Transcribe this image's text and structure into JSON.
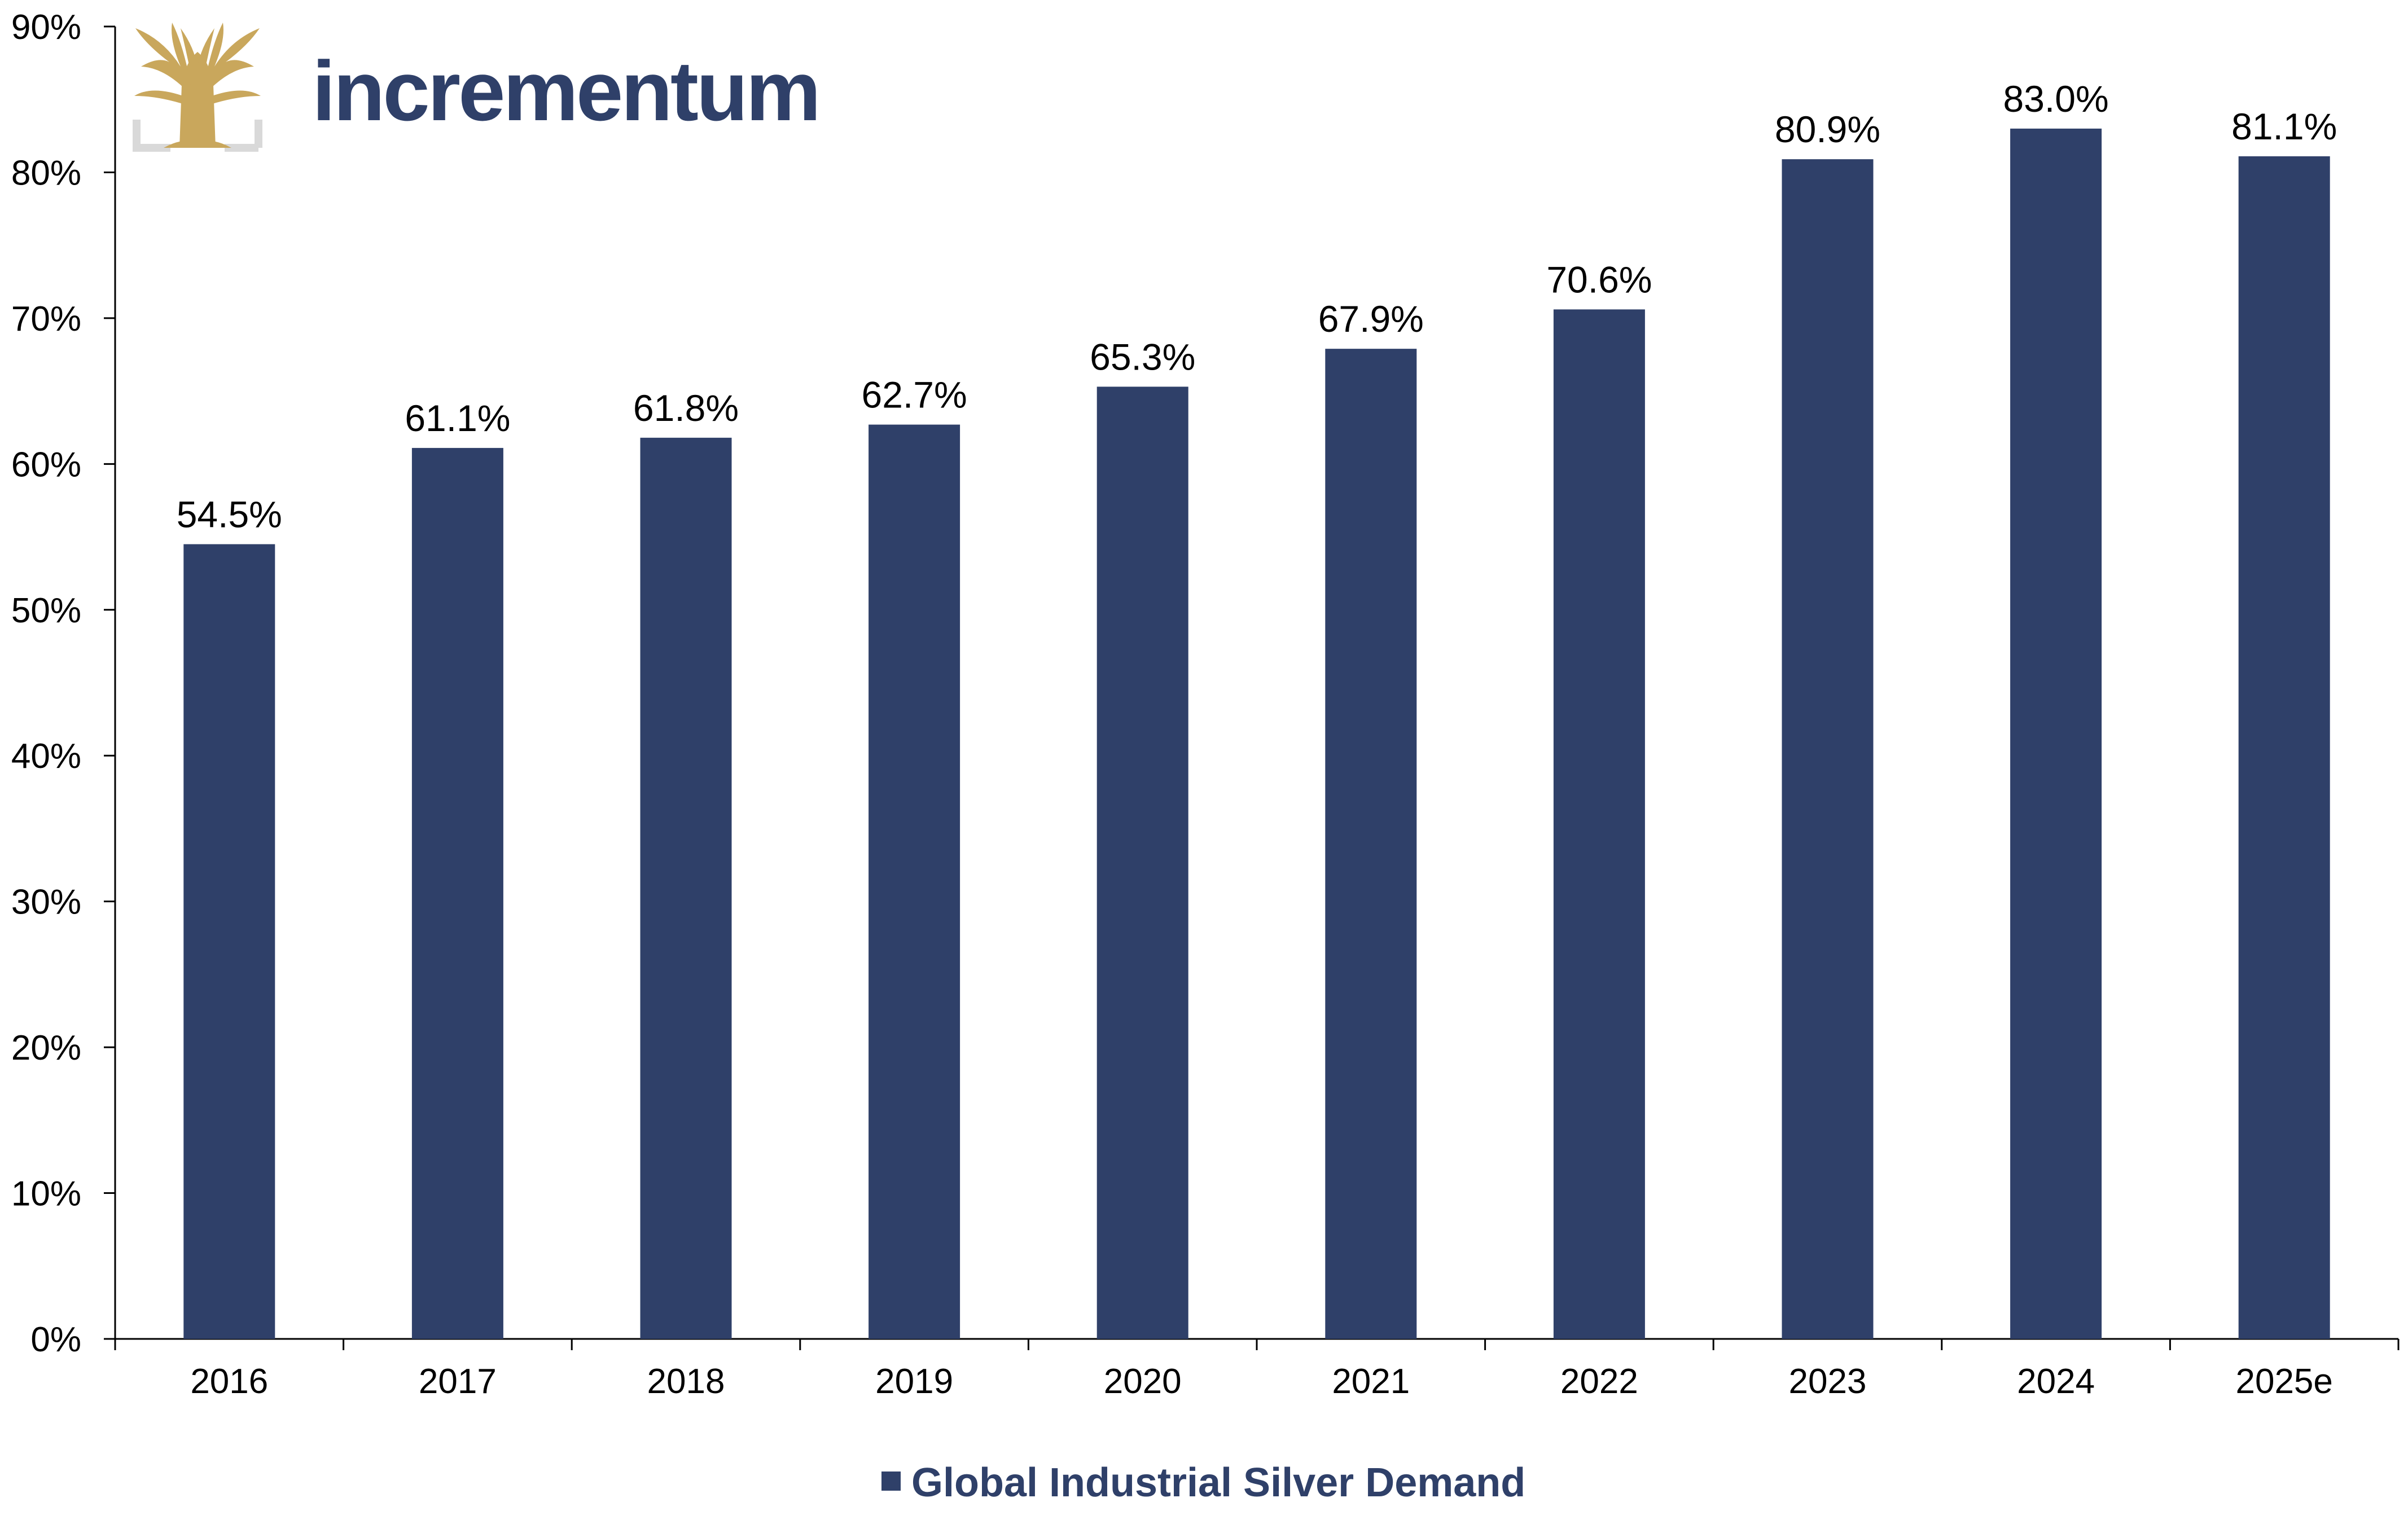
{
  "brand": {
    "name": "incrementum",
    "text_color": "#2f4069",
    "logo_color": "#c9a75c",
    "frame_color": "#d9d9d9",
    "logo_icon": "tree-icon"
  },
  "chart_data": {
    "type": "bar",
    "categories": [
      "2016",
      "2017",
      "2018",
      "2019",
      "2020",
      "2021",
      "2022",
      "2023",
      "2024",
      "2025e"
    ],
    "series": [
      {
        "name": "Global Industrial Silver Demand",
        "values": [
          54.5,
          61.1,
          61.8,
          62.7,
          65.3,
          67.9,
          70.6,
          80.9,
          83.0,
          81.1
        ],
        "data_labels": [
          "54.5%",
          "61.1%",
          "61.8%",
          "62.7%",
          "65.3%",
          "67.9%",
          "70.6%",
          "80.9%",
          "83.0%",
          "81.1%"
        ],
        "color": "#2f4069"
      }
    ],
    "title": "",
    "xlabel": "",
    "ylabel": "",
    "ylim": [
      0,
      90
    ],
    "y_ticks": [
      0,
      10,
      20,
      30,
      40,
      50,
      60,
      70,
      80,
      90
    ],
    "y_tick_labels": [
      "0%",
      "10%",
      "20%",
      "30%",
      "40%",
      "50%",
      "60%",
      "70%",
      "80%",
      "90%"
    ],
    "grid": false,
    "legend_position": "bottom-center"
  }
}
